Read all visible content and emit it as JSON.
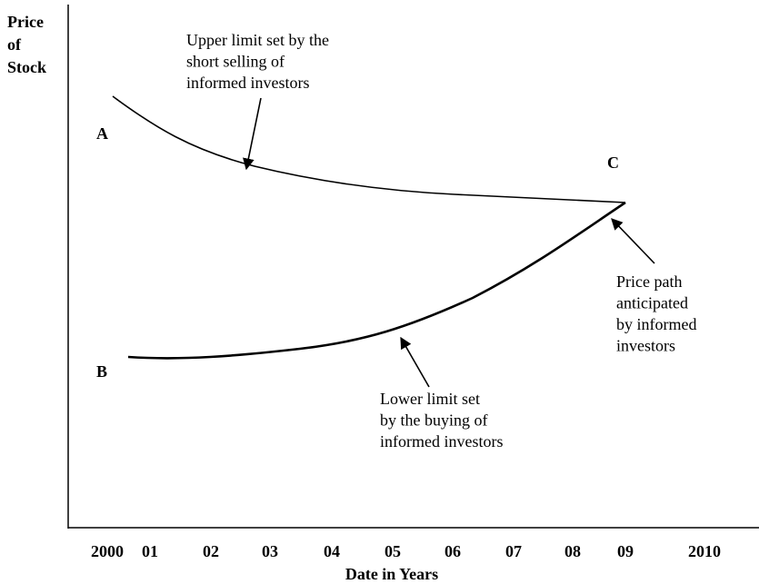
{
  "axes": {
    "y_label": [
      "Price",
      "of",
      "Stock"
    ],
    "x_label": "Date in Years",
    "x_categories": [
      "2000",
      "01",
      "02",
      "03",
      "04",
      "05",
      "06",
      "07",
      "08",
      "09",
      "2010"
    ]
  },
  "points": [
    "A",
    "B",
    "C"
  ],
  "annotations": {
    "upper": [
      "Upper limit set by the",
      "short selling of",
      "informed investors"
    ],
    "lower": [
      "Lower limit set",
      "by the buying of",
      "informed investors"
    ],
    "path": [
      "Price path",
      "anticipated",
      "by informed",
      "investors"
    ]
  }
}
